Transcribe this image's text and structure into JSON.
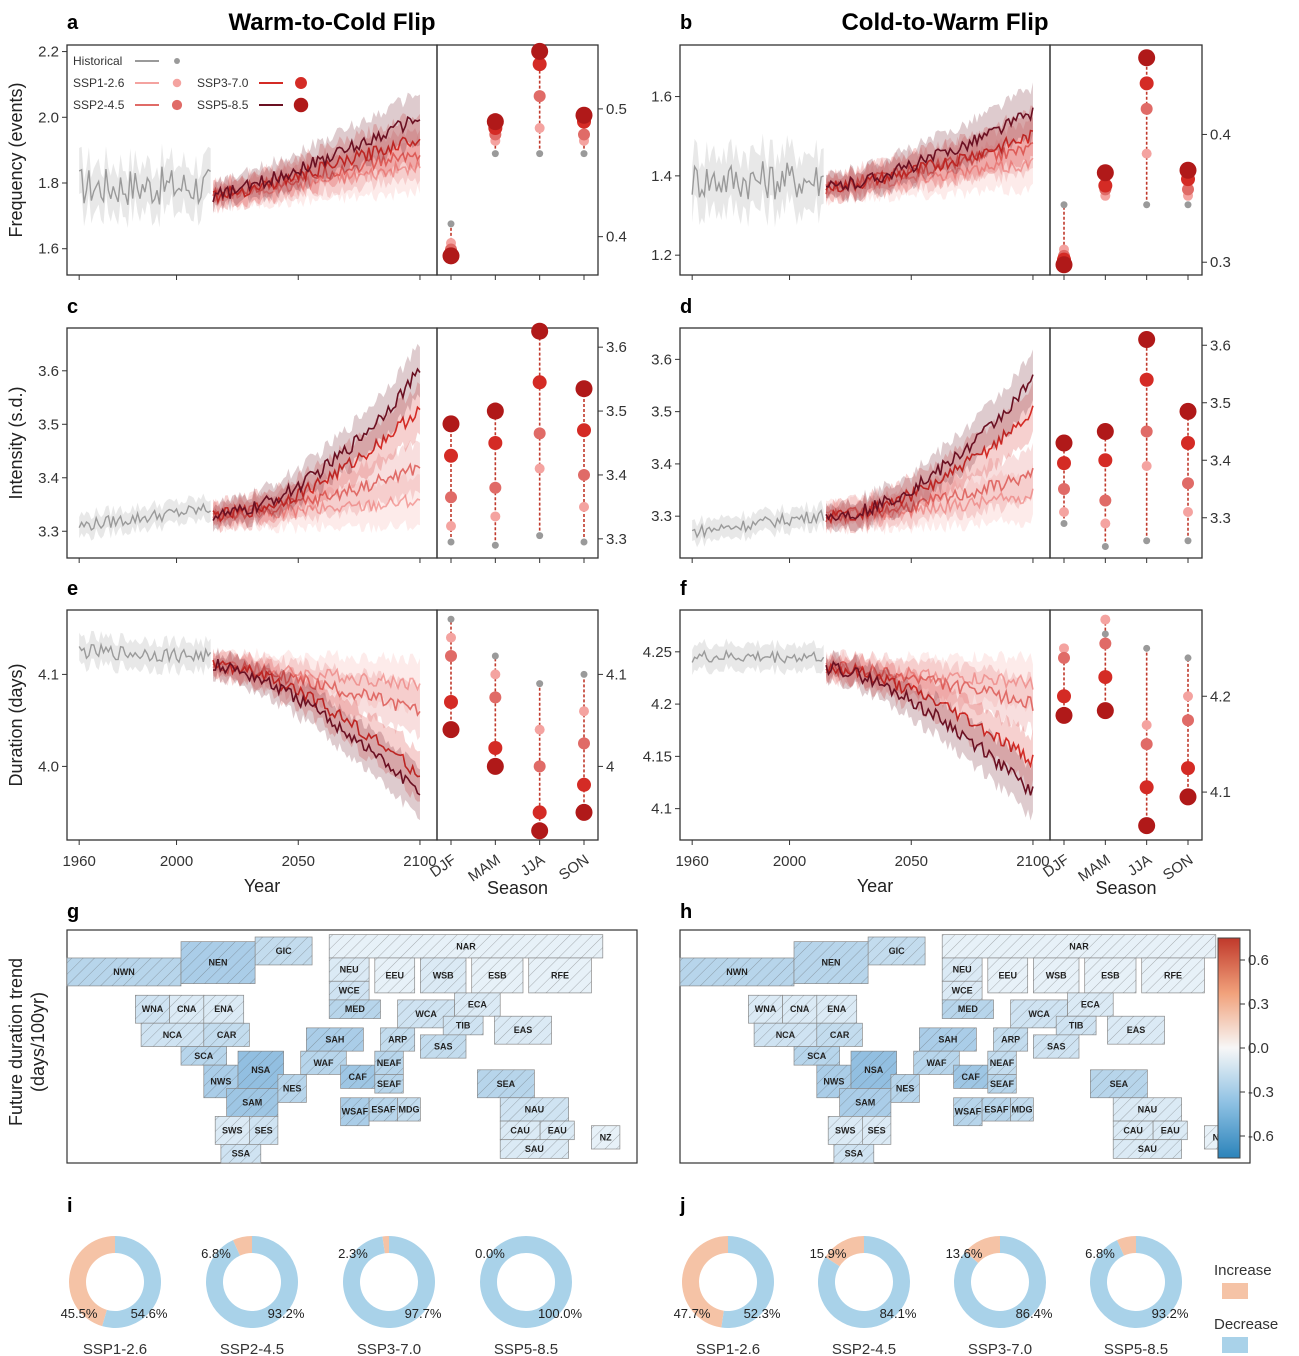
{
  "figure": {
    "titles": {
      "a": "Warm-to-Cold Flip",
      "b": "Cold-to-Warm Flip"
    },
    "panel_labels": [
      "a",
      "b",
      "c",
      "d",
      "e",
      "f",
      "g",
      "h",
      "i",
      "j"
    ],
    "colors": {
      "Historical": "#9a9a9a",
      "SSP1-2.6": "#f4a3a0",
      "SSP2-4.5": "#e06b67",
      "SSP3-7.0": "#d42b25",
      "SSP5-8.5": "#6b1022",
      "increase": "#f5c3a6",
      "decrease": "#a9d2e9"
    }
  },
  "chart_data": [
    {
      "panel": "a",
      "type": "line",
      "title": "Warm-to-Cold Flip",
      "ylabel": "Frequency (events)",
      "xlabel": "",
      "xlim": [
        1955,
        2107
      ],
      "ylim": [
        1.52,
        2.22
      ],
      "xticks": [
        1960,
        2000,
        2050,
        2100
      ],
      "yticks": [
        1.6,
        1.8,
        2.0,
        2.2
      ],
      "hist": {
        "start": 1960,
        "end": 2014,
        "mean": 1.79,
        "slope": 0.0,
        "amp": 0.06,
        "band": 0.07
      },
      "series": [
        {
          "name": "SSP1-2.6",
          "start_val": 1.76,
          "end_val": 1.85,
          "curv": 1.0
        },
        {
          "name": "SSP2-4.5",
          "start_val": 1.76,
          "end_val": 1.89,
          "curv": 1.0
        },
        {
          "name": "SSP3-7.0",
          "start_val": 1.76,
          "end_val": 1.94,
          "curv": 1.2
        },
        {
          "name": "SSP5-8.5",
          "start_val": 1.76,
          "end_val": 2.0,
          "curv": 1.2
        }
      ],
      "seasonal": {
        "categories": [
          "DJF",
          "MAM",
          "JJA",
          "SON"
        ],
        "ylim": [
          0.37,
          0.55
        ],
        "yticks": [
          0.4,
          0.5
        ],
        "values": {
          "Historical": [
            0.41,
            0.465,
            0.465,
            0.465
          ],
          "SSP1-2.6": [
            0.395,
            0.475,
            0.485,
            0.475
          ],
          "SSP2-4.5": [
            0.39,
            0.48,
            0.51,
            0.48
          ],
          "SSP3-7.0": [
            0.385,
            0.485,
            0.535,
            0.49
          ],
          "SSP5-8.5": [
            0.385,
            0.49,
            0.545,
            0.495
          ]
        }
      },
      "legend": {
        "entries": [
          "Historical",
          "SSP1-2.6",
          "SSP2-4.5",
          "SSP3-7.0",
          "SSP5-8.5"
        ],
        "placement": "top-left"
      }
    },
    {
      "panel": "b",
      "type": "line",
      "title": "Cold-to-Warm Flip",
      "ylabel": "",
      "xlabel": "",
      "xlim": [
        1955,
        2107
      ],
      "ylim": [
        1.15,
        1.73
      ],
      "xticks": [
        1960,
        2000,
        2050,
        2100
      ],
      "yticks": [
        1.2,
        1.4,
        1.6
      ],
      "hist": {
        "start": 1960,
        "end": 2014,
        "mean": 1.39,
        "slope": 0.0,
        "amp": 0.05,
        "band": 0.07
      },
      "series": [
        {
          "name": "SSP1-2.6",
          "start_val": 1.37,
          "end_val": 1.43,
          "curv": 1.0
        },
        {
          "name": "SSP2-4.5",
          "start_val": 1.37,
          "end_val": 1.47,
          "curv": 1.0
        },
        {
          "name": "SSP3-7.0",
          "start_val": 1.37,
          "end_val": 1.5,
          "curv": 1.3
        },
        {
          "name": "SSP5-8.5",
          "start_val": 1.37,
          "end_val": 1.56,
          "curv": 1.4
        }
      ],
      "seasonal": {
        "categories": [
          "DJF",
          "MAM",
          "JJA",
          "SON"
        ],
        "ylim": [
          0.29,
          0.47
        ],
        "yticks": [
          0.3,
          0.4
        ],
        "values": {
          "Historical": [
            0.345,
            0.355,
            0.345,
            0.345
          ],
          "SSP1-2.6": [
            0.31,
            0.352,
            0.385,
            0.352
          ],
          "SSP2-4.5": [
            0.305,
            0.357,
            0.42,
            0.357
          ],
          "SSP3-7.0": [
            0.302,
            0.36,
            0.44,
            0.365
          ],
          "SSP5-8.5": [
            0.298,
            0.37,
            0.46,
            0.372
          ]
        }
      }
    },
    {
      "panel": "c",
      "type": "line",
      "ylabel": "Intensity (s.d.)",
      "xlabel": "",
      "xlim": [
        1955,
        2107
      ],
      "ylim": [
        3.25,
        3.68
      ],
      "xticks": [
        1960,
        2000,
        2050,
        2100
      ],
      "yticks": [
        3.3,
        3.4,
        3.5,
        3.6
      ],
      "hist": {
        "start": 1960,
        "end": 2014,
        "mean": 3.31,
        "slope": 0.0006,
        "amp": 0.012,
        "band": 0.02
      },
      "series": [
        {
          "name": "SSP1-2.6",
          "start_val": 3.33,
          "end_val": 3.36,
          "curv": 1.5
        },
        {
          "name": "SSP2-4.5",
          "start_val": 3.33,
          "end_val": 3.42,
          "curv": 1.6
        },
        {
          "name": "SSP3-7.0",
          "start_val": 3.33,
          "end_val": 3.53,
          "curv": 1.8
        },
        {
          "name": "SSP5-8.5",
          "start_val": 3.33,
          "end_val": 3.6,
          "curv": 1.8
        }
      ],
      "seasonal": {
        "categories": [
          "DJF",
          "MAM",
          "JJA",
          "SON"
        ],
        "ylim": [
          3.27,
          3.63
        ],
        "yticks": [
          3.3,
          3.4,
          3.5,
          3.6
        ],
        "values": {
          "Historical": [
            3.295,
            3.29,
            3.305,
            3.295
          ],
          "SSP1-2.6": [
            3.32,
            3.335,
            3.41,
            3.35
          ],
          "SSP2-4.5": [
            3.365,
            3.38,
            3.465,
            3.4
          ],
          "SSP3-7.0": [
            3.43,
            3.45,
            3.545,
            3.47
          ],
          "SSP5-8.5": [
            3.48,
            3.5,
            3.625,
            3.535
          ]
        }
      }
    },
    {
      "panel": "d",
      "type": "line",
      "ylabel": "",
      "xlabel": "",
      "xlim": [
        1955,
        2107
      ],
      "ylim": [
        3.22,
        3.66
      ],
      "xticks": [
        1960,
        2000,
        2050,
        2100
      ],
      "yticks": [
        3.3,
        3.4,
        3.5,
        3.6
      ],
      "hist": {
        "start": 1960,
        "end": 2014,
        "mean": 3.27,
        "slope": 0.0006,
        "amp": 0.012,
        "band": 0.02
      },
      "series": [
        {
          "name": "SSP1-2.6",
          "start_val": 3.3,
          "end_val": 3.34,
          "curv": 1.5
        },
        {
          "name": "SSP2-4.5",
          "start_val": 3.3,
          "end_val": 3.38,
          "curv": 1.6
        },
        {
          "name": "SSP3-7.0",
          "start_val": 3.3,
          "end_val": 3.5,
          "curv": 1.8
        },
        {
          "name": "SSP5-8.5",
          "start_val": 3.3,
          "end_val": 3.56,
          "curv": 1.8
        }
      ],
      "seasonal": {
        "categories": [
          "DJF",
          "MAM",
          "JJA",
          "SON"
        ],
        "ylim": [
          3.23,
          3.63
        ],
        "yticks": [
          3.3,
          3.4,
          3.5,
          3.6
        ],
        "values": {
          "Historical": [
            3.29,
            3.25,
            3.26,
            3.26
          ],
          "SSP1-2.6": [
            3.31,
            3.29,
            3.39,
            3.31
          ],
          "SSP2-4.5": [
            3.35,
            3.33,
            3.45,
            3.36
          ],
          "SSP3-7.0": [
            3.395,
            3.4,
            3.54,
            3.43
          ],
          "SSP5-8.5": [
            3.43,
            3.45,
            3.61,
            3.485
          ]
        }
      }
    },
    {
      "panel": "e",
      "type": "line",
      "ylabel": "Duration (days)",
      "xlabel": "Year",
      "xlim": [
        1955,
        2107
      ],
      "ylim": [
        3.92,
        4.17
      ],
      "xticks": [
        1960,
        2000,
        2050,
        2100
      ],
      "yticks": [
        4.0,
        4.1
      ],
      "hist": {
        "start": 1960,
        "end": 2014,
        "mean": 4.125,
        "slope": -0.0001,
        "amp": 0.008,
        "band": 0.015
      },
      "series": [
        {
          "name": "SSP1-2.6",
          "start_val": 4.11,
          "end_val": 4.09,
          "curv": 1.0
        },
        {
          "name": "SSP2-4.5",
          "start_val": 4.11,
          "end_val": 4.06,
          "curv": 1.3
        },
        {
          "name": "SSP3-7.0",
          "start_val": 4.11,
          "end_val": 3.99,
          "curv": 1.6
        },
        {
          "name": "SSP5-8.5",
          "start_val": 4.11,
          "end_val": 3.97,
          "curv": 1.5
        }
      ],
      "seasonal": {
        "categories": [
          "DJF",
          "MAM",
          "JJA",
          "SON"
        ],
        "ylim": [
          3.92,
          4.17
        ],
        "yticks": [
          4.0,
          4.1
        ],
        "values": {
          "Historical": [
            4.16,
            4.12,
            4.09,
            4.1
          ],
          "SSP1-2.6": [
            4.14,
            4.1,
            4.04,
            4.06
          ],
          "SSP2-4.5": [
            4.12,
            4.075,
            4.0,
            4.025
          ],
          "SSP3-7.0": [
            4.07,
            4.02,
            3.95,
            3.98
          ],
          "SSP5-8.5": [
            4.04,
            4.0,
            3.93,
            3.95
          ]
        }
      }
    },
    {
      "panel": "f",
      "type": "line",
      "ylabel": "",
      "xlabel": "Year",
      "xlim": [
        1955,
        2107
      ],
      "ylim": [
        4.07,
        4.29
      ],
      "xticks": [
        1960,
        2000,
        2050,
        2100
      ],
      "yticks": [
        4.1,
        4.15,
        4.2,
        4.25
      ],
      "hist": {
        "start": 1960,
        "end": 2014,
        "mean": 4.245,
        "slope": 0.0,
        "amp": 0.006,
        "band": 0.012
      },
      "series": [
        {
          "name": "SSP1-2.6",
          "start_val": 4.235,
          "end_val": 4.22,
          "curv": 1.0
        },
        {
          "name": "SSP2-4.5",
          "start_val": 4.235,
          "end_val": 4.2,
          "curv": 1.4
        },
        {
          "name": "SSP3-7.0",
          "start_val": 4.235,
          "end_val": 4.145,
          "curv": 1.6
        },
        {
          "name": "SSP5-8.5",
          "start_val": 4.235,
          "end_val": 4.115,
          "curv": 1.5
        }
      ],
      "seasonal": {
        "categories": [
          "DJF",
          "MAM",
          "JJA",
          "SON"
        ],
        "ylim": [
          4.05,
          4.29
        ],
        "yticks": [
          4.1,
          4.2
        ],
        "values": {
          "Historical": [
            4.25,
            4.265,
            4.25,
            4.24
          ],
          "SSP1-2.6": [
            4.25,
            4.28,
            4.17,
            4.2
          ],
          "SSP2-4.5": [
            4.24,
            4.255,
            4.15,
            4.175
          ],
          "SSP3-7.0": [
            4.2,
            4.22,
            4.105,
            4.125
          ],
          "SSP5-8.5": [
            4.18,
            4.185,
            4.065,
            4.095
          ]
        }
      }
    },
    {
      "panel": "g",
      "type": "heatmap",
      "colorbar": {
        "label": "Future duration trend (days/100yr)",
        "ticks": [
          "0.6",
          "0.3",
          "0.0",
          "-0.3",
          "-0.6"
        ],
        "range": [
          -0.75,
          0.75
        ]
      },
      "regions": [
        "GIC",
        "NWN",
        "NEN",
        "NAR",
        "WNA",
        "CNA",
        "ENA",
        "NCA",
        "CAR",
        "SCA",
        "NWS",
        "NSA",
        "SAM",
        "NES",
        "SWS",
        "SES",
        "SSA",
        "NEU",
        "WCE",
        "MED",
        "EEU",
        "WSB",
        "ESB",
        "RFE",
        "SAH",
        "WAF",
        "CAF",
        "NEAF",
        "SEAF",
        "WSAF",
        "ESAF",
        "MDG",
        "ARP",
        "WCA",
        "ECA",
        "TIB",
        "EAS",
        "SAS",
        "SEA",
        "NAU",
        "CAU",
        "EAU",
        "SAU",
        "NZ"
      ],
      "values": [
        -0.25,
        -0.3,
        -0.35,
        -0.1,
        -0.2,
        -0.15,
        -0.15,
        -0.2,
        -0.25,
        -0.3,
        -0.35,
        -0.45,
        -0.4,
        -0.3,
        -0.15,
        -0.2,
        -0.2,
        -0.15,
        -0.2,
        -0.3,
        -0.1,
        -0.15,
        -0.1,
        -0.1,
        -0.35,
        -0.3,
        -0.4,
        -0.3,
        -0.3,
        -0.35,
        -0.3,
        -0.25,
        -0.25,
        -0.2,
        -0.15,
        -0.2,
        -0.15,
        -0.25,
        -0.3,
        -0.2,
        -0.15,
        -0.15,
        -0.15,
        -0.1
      ]
    },
    {
      "panel": "h",
      "type": "heatmap",
      "regions": [
        "GIC",
        "NWN",
        "NEN",
        "NAR",
        "WNA",
        "CNA",
        "ENA",
        "NCA",
        "CAR",
        "SCA",
        "NWS",
        "NSA",
        "SAM",
        "NES",
        "SWS",
        "SES",
        "SSA",
        "NEU",
        "WCE",
        "MED",
        "EEU",
        "WSB",
        "ESB",
        "RFE",
        "SAH",
        "WAF",
        "CAF",
        "NEAF",
        "SEAF",
        "WSAF",
        "ESAF",
        "MDG",
        "ARP",
        "WCA",
        "ECA",
        "TIB",
        "EAS",
        "SAS",
        "SEA",
        "NAU",
        "CAU",
        "EAU",
        "SAU",
        "NZ"
      ],
      "values": [
        -0.25,
        -0.3,
        -0.3,
        -0.1,
        -0.15,
        -0.15,
        -0.15,
        -0.2,
        -0.25,
        -0.3,
        -0.35,
        -0.45,
        -0.35,
        -0.3,
        -0.15,
        -0.15,
        -0.2,
        -0.15,
        -0.15,
        -0.3,
        -0.1,
        -0.1,
        -0.1,
        -0.1,
        -0.35,
        -0.3,
        -0.4,
        -0.25,
        -0.3,
        -0.3,
        -0.3,
        -0.25,
        -0.25,
        -0.2,
        -0.15,
        -0.2,
        -0.15,
        -0.2,
        -0.3,
        -0.15,
        -0.15,
        -0.15,
        -0.15,
        -0.1
      ]
    },
    {
      "panel": "i",
      "type": "pie",
      "charts": [
        {
          "name": "SSP1-2.6",
          "increase": 45.5,
          "decrease": 54.6,
          "labels": [
            "45.5%",
            "54.6%"
          ]
        },
        {
          "name": "SSP2-4.5",
          "increase": 6.8,
          "decrease": 93.2,
          "labels": [
            "6.8%",
            "93.2%"
          ]
        },
        {
          "name": "SSP3-7.0",
          "increase": 2.3,
          "decrease": 97.7,
          "labels": [
            "2.3%",
            "97.7%"
          ]
        },
        {
          "name": "SSP5-8.5",
          "increase": 0.0,
          "decrease": 100.0,
          "labels": [
            "0.0%",
            "100.0%"
          ]
        }
      ]
    },
    {
      "panel": "j",
      "type": "pie",
      "charts": [
        {
          "name": "SSP1-2.6",
          "increase": 47.7,
          "decrease": 52.3,
          "labels": [
            "47.7%",
            "52.3%"
          ]
        },
        {
          "name": "SSP2-4.5",
          "increase": 15.9,
          "decrease": 84.1,
          "labels": [
            "15.9%",
            "84.1%"
          ]
        },
        {
          "name": "SSP3-7.0",
          "increase": 13.6,
          "decrease": 86.4,
          "labels": [
            "13.6%",
            "86.4%"
          ]
        },
        {
          "name": "SSP5-8.5",
          "increase": 6.8,
          "decrease": 93.2,
          "labels": [
            "6.8%",
            "93.2%"
          ]
        }
      ],
      "legend": {
        "entries": [
          "Increase",
          "Decrease"
        ],
        "placement": "right"
      }
    }
  ],
  "axis_text": {
    "season_label": "Season",
    "year_label": "Year",
    "map_ylabel_1": "Future duration trend",
    "map_ylabel_2": "(days/100yr)"
  }
}
